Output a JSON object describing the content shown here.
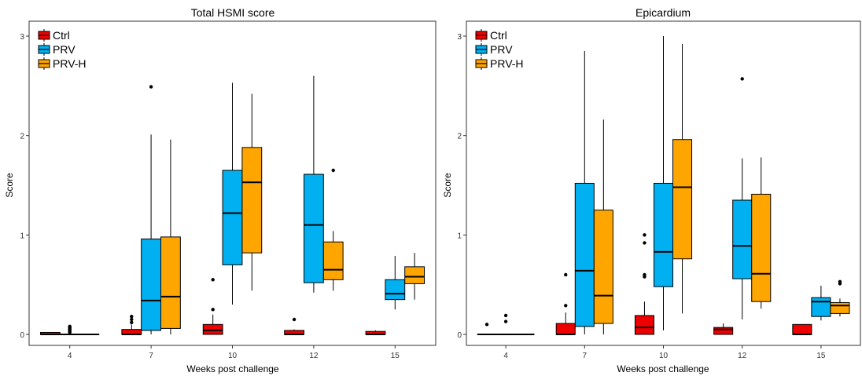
{
  "colors": {
    "ctrl": "#ee0000",
    "prv": "#00b0f0",
    "prvh": "#ffa500"
  },
  "chart_data": [
    {
      "type": "box",
      "title": "Total HSMI score",
      "xlabel": "Weeks post challenge",
      "ylabel": "Score",
      "categories": [
        "4",
        "7",
        "10",
        "12",
        "15"
      ],
      "ylim": [
        -0.15,
        3.1
      ],
      "yticks": [
        0,
        1,
        2,
        3
      ],
      "legend": "top-left",
      "grid": false,
      "series": [
        {
          "name": "Ctrl",
          "color": "#ee0000",
          "boxes": [
            {
              "cat": "4",
              "min": 0,
              "q1": 0,
              "median": 0,
              "q3": 0.02,
              "max": 0.02,
              "outliers": []
            },
            {
              "cat": "7",
              "min": 0,
              "q1": 0,
              "median": 0,
              "q3": 0.05,
              "max": 0.1,
              "outliers": [
                0.12,
                0.15,
                0.18
              ]
            },
            {
              "cat": "10",
              "min": 0,
              "q1": 0,
              "median": 0.04,
              "q3": 0.1,
              "max": 0.2,
              "outliers": [
                0.25,
                0.55
              ]
            },
            {
              "cat": "12",
              "min": 0,
              "q1": 0,
              "median": 0,
              "q3": 0.04,
              "max": 0.05,
              "outliers": [
                0.15
              ]
            },
            {
              "cat": "15",
              "min": 0,
              "q1": 0,
              "median": 0,
              "q3": 0.03,
              "max": 0.04,
              "outliers": []
            }
          ]
        },
        {
          "name": "PRV",
          "color": "#00b0f0",
          "boxes": [
            {
              "cat": "4",
              "min": 0,
              "q1": 0,
              "median": 0,
              "q3": 0,
              "max": 0,
              "outliers": [
                0.02,
                0.03,
                0.04,
                0.05,
                0.06,
                0.07,
                0.08
              ]
            },
            {
              "cat": "7",
              "min": 0,
              "q1": 0.04,
              "median": 0.34,
              "q3": 0.96,
              "max": 2.01,
              "outliers": [
                2.49
              ]
            },
            {
              "cat": "10",
              "min": 0.3,
              "q1": 0.7,
              "median": 1.22,
              "q3": 1.65,
              "max": 2.53,
              "outliers": []
            },
            {
              "cat": "12",
              "min": 0.42,
              "q1": 0.52,
              "median": 1.1,
              "q3": 1.61,
              "max": 2.6,
              "outliers": []
            },
            {
              "cat": "15",
              "min": 0.25,
              "q1": 0.35,
              "median": 0.41,
              "q3": 0.55,
              "max": 0.79,
              "outliers": []
            }
          ]
        },
        {
          "name": "PRV-H",
          "color": "#ffa500",
          "boxes": [
            {
              "cat": "4",
              "min": 0,
              "q1": 0,
              "median": 0,
              "q3": 0,
              "max": 0,
              "outliers": []
            },
            {
              "cat": "7",
              "min": 0,
              "q1": 0.06,
              "median": 0.38,
              "q3": 0.98,
              "max": 1.96,
              "outliers": []
            },
            {
              "cat": "10",
              "min": 0.44,
              "q1": 0.82,
              "median": 1.53,
              "q3": 1.88,
              "max": 2.42,
              "outliers": []
            },
            {
              "cat": "12",
              "min": 0.44,
              "q1": 0.55,
              "median": 0.65,
              "q3": 0.93,
              "max": 1.04,
              "outliers": [
                1.65
              ]
            },
            {
              "cat": "15",
              "min": 0.35,
              "q1": 0.51,
              "median": 0.58,
              "q3": 0.68,
              "max": 0.82,
              "outliers": []
            }
          ]
        }
      ]
    },
    {
      "type": "box",
      "title": "Epicardium",
      "xlabel": "Weeks post challenge",
      "ylabel": "Score",
      "categories": [
        "4",
        "7",
        "10",
        "12",
        "15"
      ],
      "ylim": [
        -0.15,
        3.1
      ],
      "yticks": [
        0,
        1,
        2,
        3
      ],
      "legend": "top-left",
      "grid": false,
      "series": [
        {
          "name": "Ctrl",
          "color": "#ee0000",
          "boxes": [
            {
              "cat": "4",
              "min": 0,
              "q1": 0,
              "median": 0,
              "q3": 0,
              "max": 0,
              "outliers": [
                0.1
              ]
            },
            {
              "cat": "7",
              "min": 0,
              "q1": 0,
              "median": 0,
              "q3": 0.11,
              "max": 0.22,
              "outliers": [
                0.29,
                0.6
              ]
            },
            {
              "cat": "10",
              "min": 0,
              "q1": 0,
              "median": 0.07,
              "q3": 0.19,
              "max": 0.33,
              "outliers": [
                0.58,
                0.6,
                0.92,
                1.0
              ]
            },
            {
              "cat": "12",
              "min": 0,
              "q1": 0,
              "median": 0.05,
              "q3": 0.07,
              "max": 0.11,
              "outliers": []
            },
            {
              "cat": "15",
              "min": 0,
              "q1": 0,
              "median": 0,
              "q3": 0.1,
              "max": 0.1,
              "outliers": []
            }
          ]
        },
        {
          "name": "PRV",
          "color": "#00b0f0",
          "boxes": [
            {
              "cat": "4",
              "min": 0,
              "q1": 0,
              "median": 0,
              "q3": 0,
              "max": 0,
              "outliers": [
                0.13,
                0.19
              ]
            },
            {
              "cat": "7",
              "min": 0,
              "q1": 0.08,
              "median": 0.64,
              "q3": 1.52,
              "max": 2.85,
              "outliers": []
            },
            {
              "cat": "10",
              "min": 0.04,
              "q1": 0.48,
              "median": 0.83,
              "q3": 1.52,
              "max": 3.0,
              "outliers": []
            },
            {
              "cat": "12",
              "min": 0.15,
              "q1": 0.56,
              "median": 0.89,
              "q3": 1.35,
              "max": 1.77,
              "outliers": [
                2.57
              ]
            },
            {
              "cat": "15",
              "min": 0.14,
              "q1": 0.18,
              "median": 0.33,
              "q3": 0.37,
              "max": 0.49,
              "outliers": []
            }
          ]
        },
        {
          "name": "PRV-H",
          "color": "#ffa500",
          "boxes": [
            {
              "cat": "4",
              "min": 0,
              "q1": 0,
              "median": 0,
              "q3": 0,
              "max": 0,
              "outliers": []
            },
            {
              "cat": "7",
              "min": 0,
              "q1": 0.11,
              "median": 0.39,
              "q3": 1.25,
              "max": 2.16,
              "outliers": []
            },
            {
              "cat": "10",
              "min": 0.21,
              "q1": 0.76,
              "median": 1.48,
              "q3": 1.96,
              "max": 2.92,
              "outliers": []
            },
            {
              "cat": "12",
              "min": 0.26,
              "q1": 0.33,
              "median": 0.61,
              "q3": 1.41,
              "max": 1.78,
              "outliers": []
            },
            {
              "cat": "15",
              "min": 0.18,
              "q1": 0.21,
              "median": 0.29,
              "q3": 0.32,
              "max": 0.36,
              "outliers": [
                0.51,
                0.53
              ]
            }
          ]
        }
      ]
    }
  ]
}
